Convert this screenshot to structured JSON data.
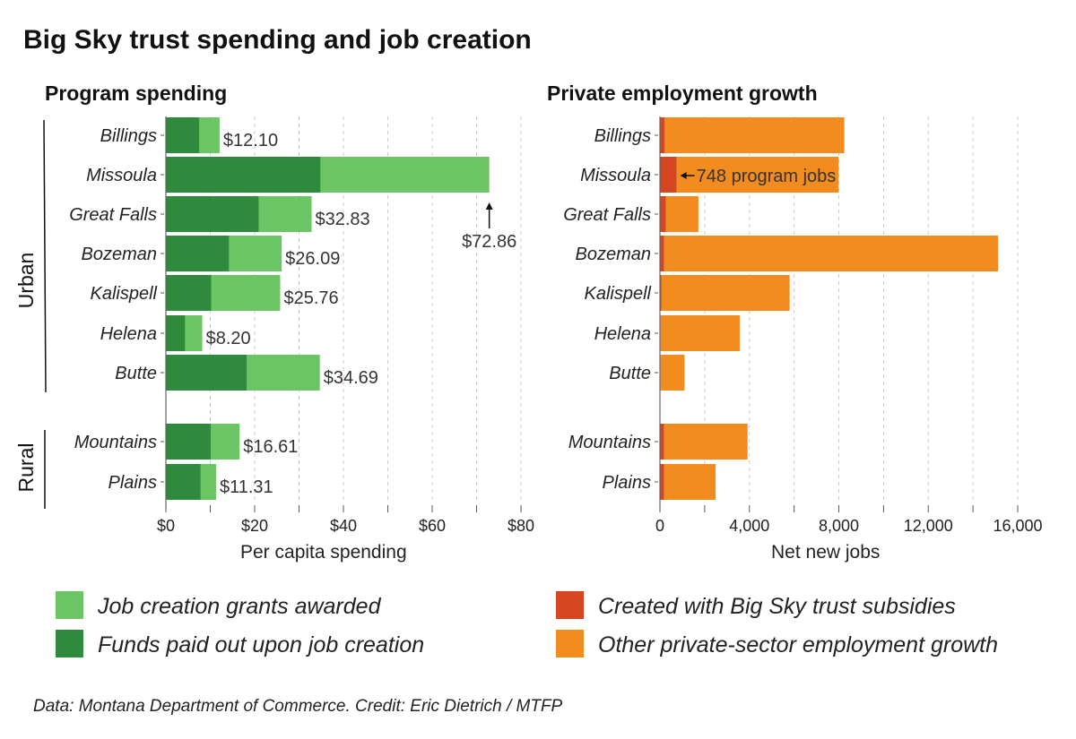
{
  "title": "Big Sky trust spending and job creation",
  "footer": "Data: Montana Department of Commerce. Credit: Eric Dietrich / MTFP",
  "groups": [
    {
      "label": "Urban",
      "categories": [
        "Billings",
        "Missoula",
        "Great Falls",
        "Bozeman",
        "Kalispell",
        "Helena",
        "Butte"
      ]
    },
    {
      "label": "Rural",
      "categories": [
        "Mountains",
        "Plains"
      ]
    }
  ],
  "legend": [
    {
      "label": "Job creation grants awarded",
      "color": "#6cc565"
    },
    {
      "label": "Funds paid out upon job creation",
      "color": "#2e8b3d"
    },
    {
      "label": "Created with Big Sky trust subsidies",
      "color": "#d44520"
    },
    {
      "label": "Other private-sector employment growth",
      "color": "#f28c1e"
    }
  ],
  "chart_data": [
    {
      "type": "bar",
      "orientation": "horizontal",
      "title": "Program spending",
      "xlabel": "Per capita spending",
      "categories": [
        "Billings",
        "Missoula",
        "Great Falls",
        "Bozeman",
        "Kalispell",
        "Helena",
        "Butte",
        "Mountains",
        "Plains"
      ],
      "xlim": [
        0,
        80
      ],
      "xticks": [
        "$0",
        "$20",
        "$40",
        "$60",
        "$80"
      ],
      "grid": "vertical dashed",
      "series": [
        {
          "name": "Funds paid out upon job creation",
          "color": "#2e8b3d",
          "values": [
            7.5,
            34.8,
            20.9,
            14.2,
            10.2,
            4.3,
            18.2,
            10.1,
            7.8
          ]
        },
        {
          "name": "Job creation grants awarded",
          "color": "#6cc565",
          "values": [
            12.1,
            72.86,
            32.83,
            26.09,
            25.76,
            8.2,
            34.69,
            16.61,
            11.31
          ]
        }
      ],
      "data_labels": [
        "$12.10",
        "$72.86",
        "$32.83",
        "$26.09",
        "$25.76",
        "$8.20",
        "$34.69",
        "$16.61",
        "$11.31"
      ]
    },
    {
      "type": "bar",
      "orientation": "horizontal",
      "stacked": true,
      "title": "Private employment growth",
      "xlabel": "Net new jobs",
      "categories": [
        "Billings",
        "Missoula",
        "Great Falls",
        "Bozeman",
        "Kalispell",
        "Helena",
        "Butte",
        "Mountains",
        "Plains"
      ],
      "xlim": [
        0,
        16000
      ],
      "xticks": [
        "0",
        "4,000",
        "8,000",
        "12,000",
        "16,000"
      ],
      "grid": "vertical dashed",
      "series": [
        {
          "name": "Created with Big Sky trust subsidies",
          "color": "#d44520",
          "values": [
            215,
            748,
            260,
            185,
            60,
            30,
            30,
            185,
            185
          ]
        },
        {
          "name": "Other private-sector employment growth",
          "color": "#f28c1e",
          "values": [
            8030,
            7240,
            1460,
            14935,
            5740,
            3540,
            1070,
            3735,
            2305
          ]
        }
      ],
      "annotation": "748 program jobs"
    }
  ]
}
